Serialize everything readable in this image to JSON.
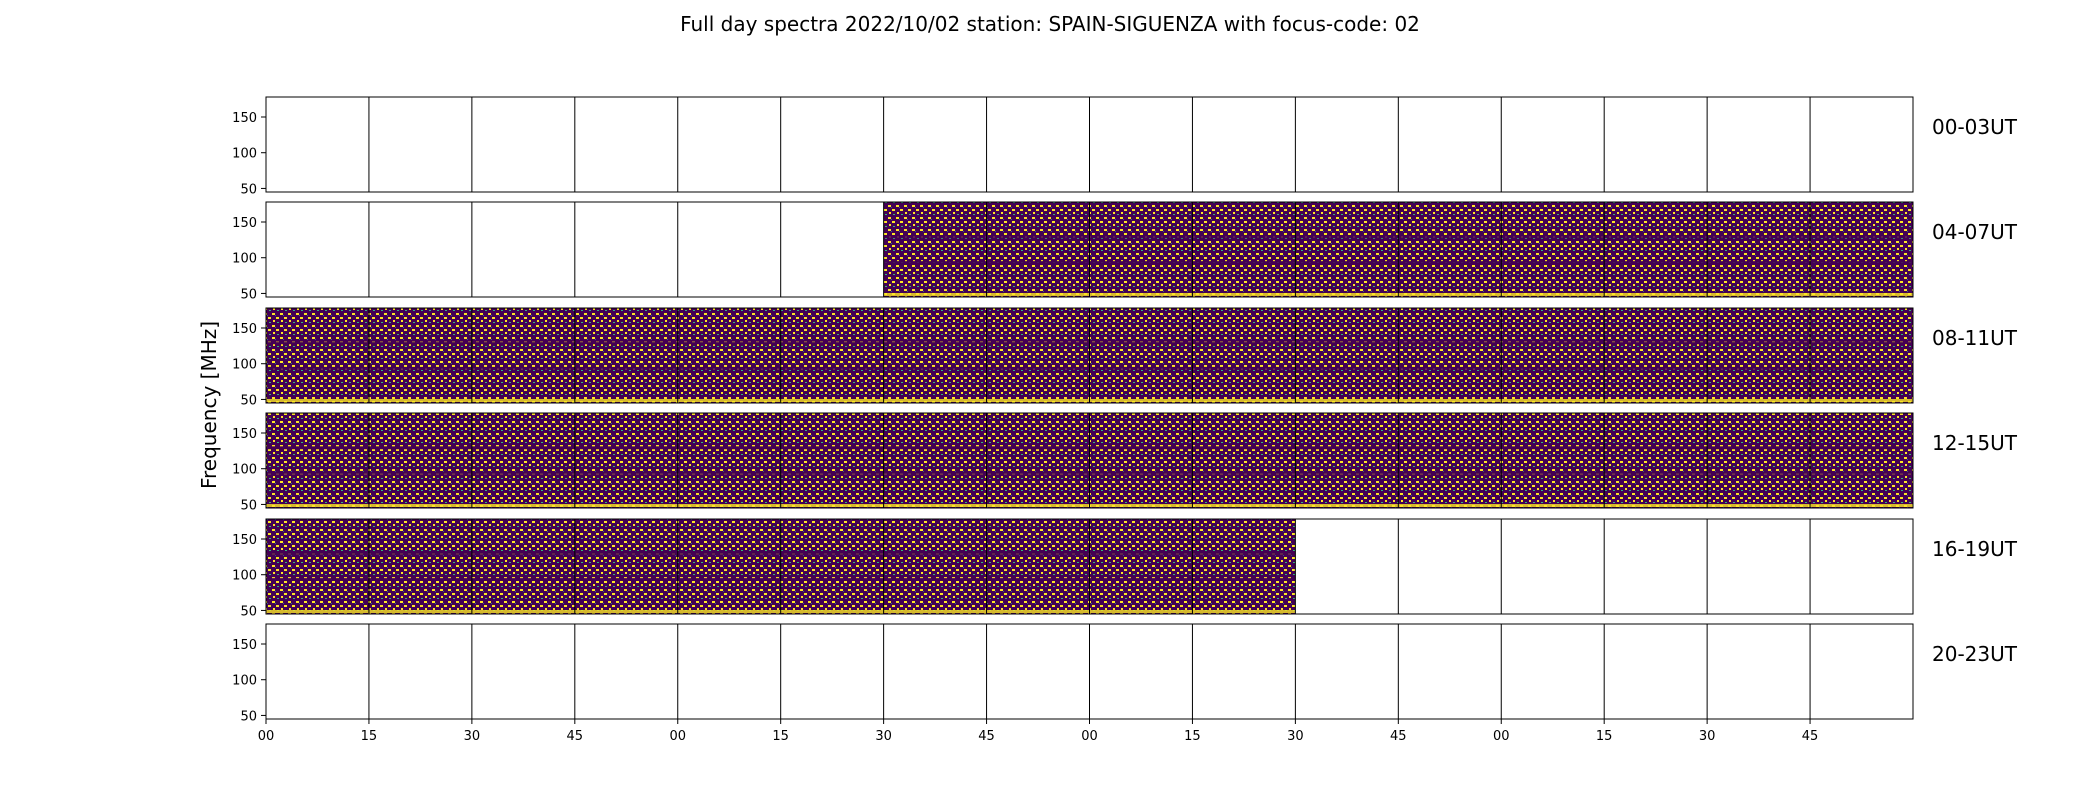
{
  "chart_data": {
    "type": "heatmap",
    "title": "Full day spectra 2022/10/02 station: SPAIN-SIGUENZA with focus-code: 02",
    "ylabel": "Frequency [MHz]",
    "ylim": [
      45,
      178
    ],
    "yticks": [
      50,
      100,
      150
    ],
    "xticks": [
      "00",
      "15",
      "30",
      "45",
      "00",
      "15",
      "30",
      "45",
      "00",
      "15",
      "30",
      "45",
      "00",
      "15",
      "30",
      "45"
    ],
    "colormap": [
      "#440154",
      "#31688e",
      "#35b779",
      "#fde725"
    ],
    "rows": [
      {
        "label": "00-03UT",
        "panels_with_data": [
          false,
          false,
          false,
          false,
          false,
          false,
          false,
          false,
          false,
          false,
          false,
          false,
          false,
          false,
          false,
          false
        ]
      },
      {
        "label": "04-07UT",
        "panels_with_data": [
          false,
          false,
          false,
          false,
          false,
          false,
          true,
          true,
          true,
          true,
          true,
          true,
          true,
          true,
          true,
          true
        ]
      },
      {
        "label": "08-11UT",
        "panels_with_data": [
          true,
          true,
          true,
          true,
          true,
          true,
          true,
          true,
          true,
          true,
          true,
          true,
          true,
          true,
          true,
          true
        ]
      },
      {
        "label": "12-15UT",
        "panels_with_data": [
          true,
          true,
          true,
          true,
          true,
          true,
          true,
          true,
          true,
          true,
          true,
          true,
          true,
          true,
          true,
          true
        ]
      },
      {
        "label": "16-19UT",
        "panels_with_data": [
          true,
          true,
          true,
          true,
          true,
          true,
          true,
          true,
          true,
          true,
          false,
          false,
          false,
          false,
          false,
          false
        ]
      },
      {
        "label": "20-23UT",
        "panels_with_data": [
          false,
          false,
          false,
          false,
          false,
          false,
          false,
          false,
          false,
          false,
          false,
          false,
          false,
          false,
          false,
          false
        ]
      }
    ]
  }
}
